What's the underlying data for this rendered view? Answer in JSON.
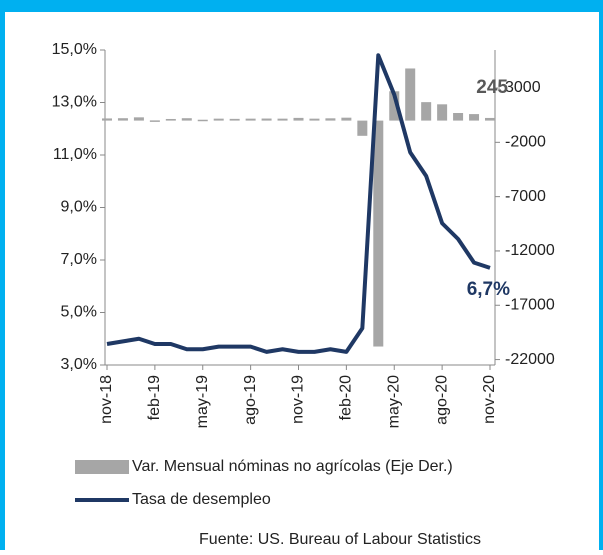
{
  "chart_data": {
    "type": "bar_line",
    "categories": [
      "nov-18",
      null,
      null,
      "feb-19",
      null,
      null,
      "may-19",
      null,
      null,
      "ago-19",
      null,
      null,
      "nov-19",
      null,
      null,
      "feb-20",
      null,
      null,
      "may-20",
      null,
      null,
      "ago-20",
      null,
      null,
      "nov-20"
    ],
    "series": [
      {
        "name": "Var. Mensual nóminas no agrícolas (Eje Der.)",
        "color": "#a6a6a6",
        "type": "bar",
        "axis": "y2",
        "values": [
          200,
          220,
          300,
          20,
          150,
          220,
          80,
          180,
          160,
          180,
          190,
          180,
          250,
          180,
          210,
          270,
          -1400,
          -20800,
          2700,
          4800,
          1700,
          1500,
          700,
          600,
          245
        ]
      },
      {
        "name": "Tasa de desempleo",
        "color": "#1f3864",
        "type": "line",
        "axis": "y",
        "values": [
          3.8,
          3.9,
          4.0,
          3.8,
          3.8,
          3.6,
          3.6,
          3.7,
          3.7,
          3.7,
          3.5,
          3.6,
          3.5,
          3.5,
          3.6,
          3.5,
          4.4,
          14.8,
          13.3,
          11.1,
          10.2,
          8.4,
          7.8,
          6.9,
          6.7
        ],
        "value_labels": [
          null,
          null,
          null,
          null,
          null,
          null,
          null,
          null,
          null,
          null,
          null,
          null,
          null,
          null,
          null,
          null,
          null,
          null,
          null,
          null,
          null,
          null,
          null,
          null,
          "6,7%"
        ]
      }
    ],
    "ylim": [
      3,
      15
    ],
    "yticks": [
      {
        "value": 3,
        "label": "3,0%"
      },
      {
        "value": 5,
        "label": "5,0%"
      },
      {
        "value": 7,
        "label": "7,0%"
      },
      {
        "value": 9,
        "label": "9,0%"
      },
      {
        "value": 11,
        "label": "11,0%"
      },
      {
        "value": 13,
        "label": "13,0%"
      },
      {
        "value": 15,
        "label": "15,0%"
      }
    ],
    "y2lim": [
      -22500,
      6500
    ],
    "y2ticks": [
      -22000,
      -17000,
      -12000,
      -7000,
      -2000,
      3000
    ],
    "source": "Fuente: US. Bureau of Labour Statistics"
  }
}
